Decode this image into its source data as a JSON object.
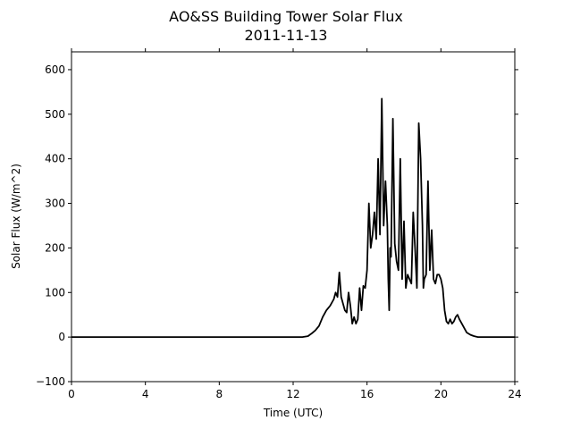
{
  "chart_data": {
    "type": "line",
    "title": "AO&SS Building Tower Solar Flux",
    "subtitle": "2011-11-13",
    "xlabel": "Time (UTC)",
    "ylabel": "Solar Flux (W/m^2)",
    "xlim": [
      0,
      24
    ],
    "ylim": [
      -100,
      640
    ],
    "xticks": [
      0,
      4,
      8,
      12,
      16,
      20,
      24
    ],
    "yticks": [
      -100,
      0,
      100,
      200,
      300,
      400,
      500,
      600
    ],
    "grid": false,
    "legend": "none",
    "series": [
      {
        "color": "#000000",
        "x": [
          0,
          12.5,
          12.8,
          13.0,
          13.2,
          13.4,
          13.6,
          13.8,
          14.0,
          14.2,
          14.3,
          14.4,
          14.5,
          14.6,
          14.7,
          14.8,
          14.9,
          15.0,
          15.1,
          15.2,
          15.3,
          15.4,
          15.5,
          15.6,
          15.7,
          15.8,
          15.9,
          16.0,
          16.1,
          16.2,
          16.3,
          16.4,
          16.5,
          16.6,
          16.7,
          16.8,
          16.9,
          17.0,
          17.1,
          17.15,
          17.2,
          17.25,
          17.3,
          17.4,
          17.5,
          17.6,
          17.7,
          17.8,
          17.9,
          18.0,
          18.1,
          18.2,
          18.3,
          18.4,
          18.5,
          18.6,
          18.7,
          18.8,
          18.9,
          19.0,
          19.05,
          19.1,
          19.2,
          19.3,
          19.4,
          19.5,
          19.6,
          19.7,
          19.8,
          19.9,
          20.0,
          20.1,
          20.2,
          20.3,
          20.4,
          20.5,
          20.6,
          20.7,
          20.8,
          20.9,
          21.0,
          21.2,
          21.4,
          21.6,
          21.8,
          22.0,
          22.2,
          22.4,
          22.6,
          22.8,
          23.0,
          23.5,
          24.0
        ],
        "values": [
          0,
          0,
          2,
          8,
          15,
          25,
          45,
          60,
          70,
          85,
          100,
          90,
          145,
          90,
          75,
          60,
          55,
          100,
          70,
          30,
          45,
          30,
          40,
          110,
          60,
          115,
          110,
          150,
          300,
          200,
          230,
          280,
          220,
          400,
          230,
          535,
          250,
          350,
          250,
          130,
          60,
          200,
          180,
          490,
          210,
          170,
          150,
          400,
          130,
          260,
          110,
          140,
          130,
          120,
          280,
          200,
          110,
          480,
          400,
          250,
          110,
          130,
          140,
          350,
          150,
          240,
          130,
          120,
          140,
          140,
          130,
          110,
          60,
          35,
          30,
          40,
          30,
          35,
          45,
          50,
          40,
          25,
          10,
          5,
          2,
          0,
          0,
          0,
          0,
          0,
          0,
          0,
          0
        ]
      }
    ]
  }
}
